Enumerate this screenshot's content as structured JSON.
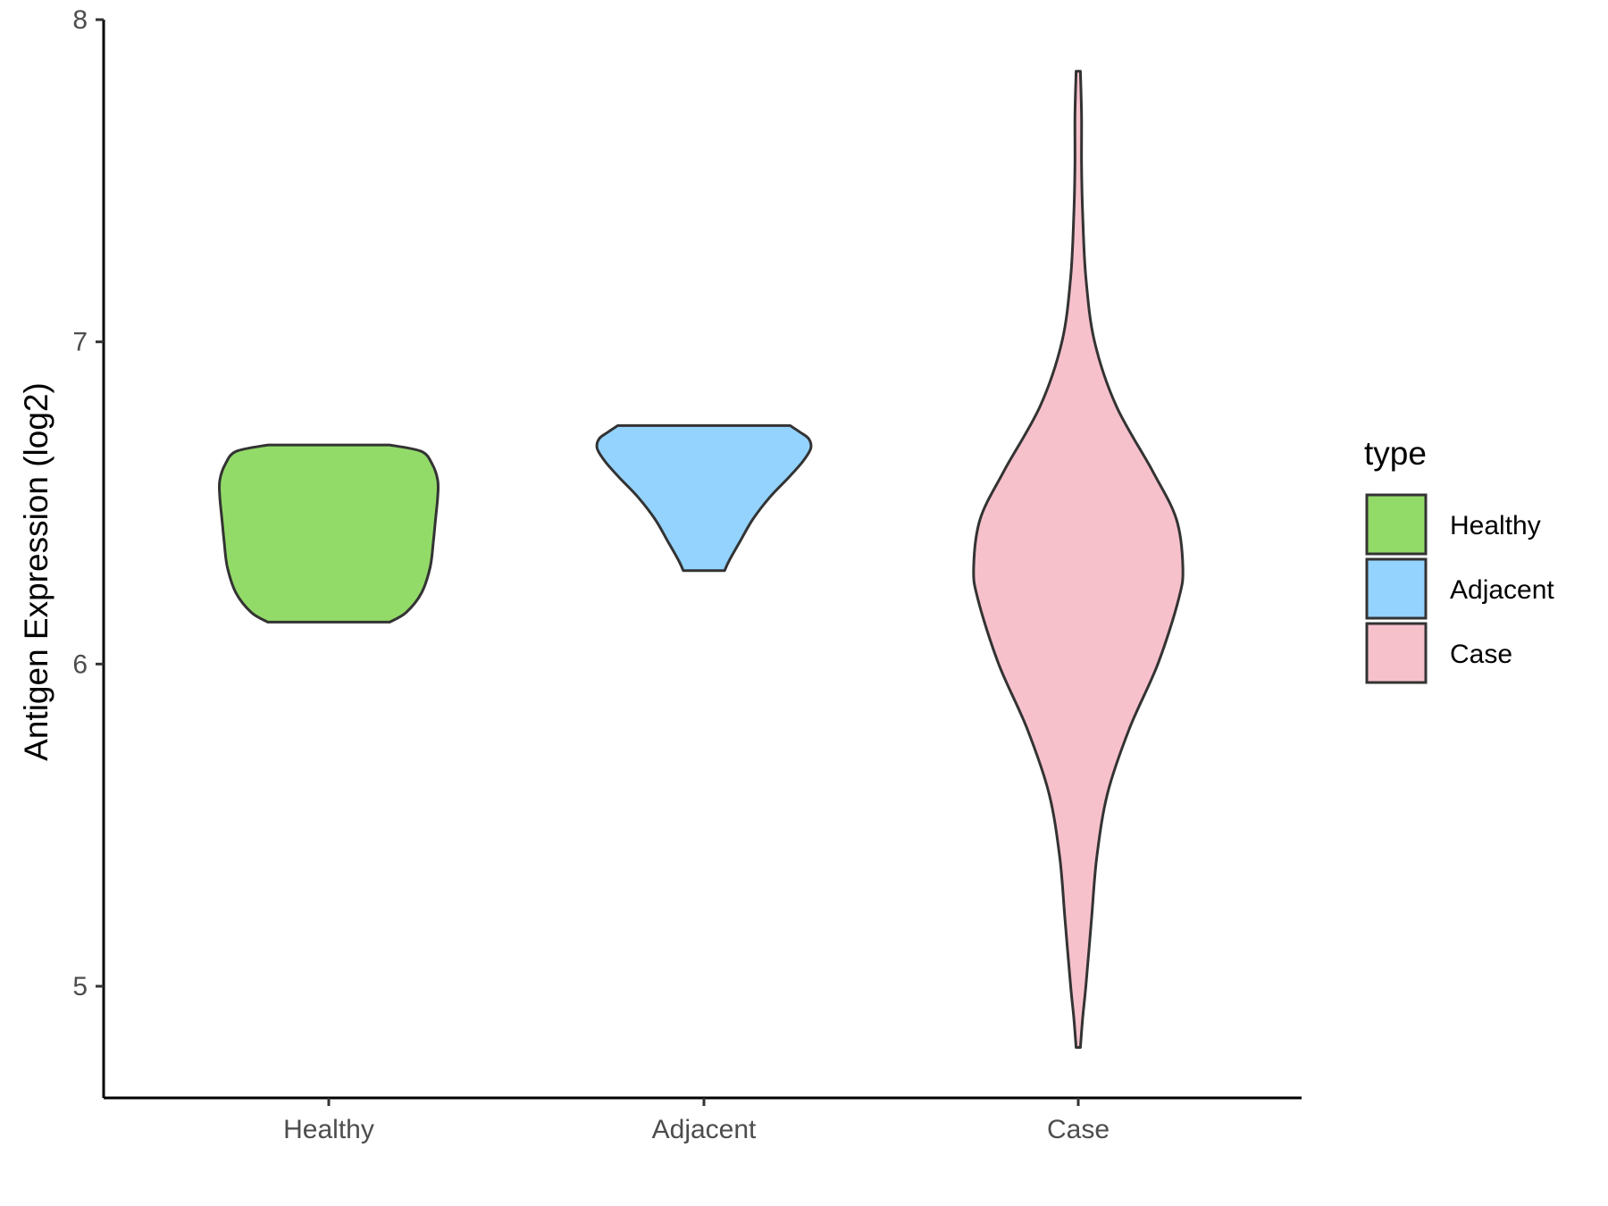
{
  "chart_data": {
    "type": "violin",
    "title": "",
    "xlabel": "",
    "ylabel": "Antigen Expression (log2)",
    "ylim": [
      4.65,
      8.0
    ],
    "yticks": [
      "5",
      "6",
      "7",
      "8"
    ],
    "categories": [
      "Healthy",
      "Adjacent",
      "Case"
    ],
    "grid": false,
    "legend": {
      "title": "type",
      "position": "right",
      "entries": [
        "Healthy",
        "Adjacent",
        "Case"
      ]
    },
    "series": [
      {
        "name": "Healthy",
        "color": "#93DB69",
        "min": 6.13,
        "max": 6.68,
        "density": [
          [
            6.13,
            0.56
          ],
          [
            6.16,
            0.71
          ],
          [
            6.22,
            0.85
          ],
          [
            6.3,
            0.93
          ],
          [
            6.38,
            0.96
          ],
          [
            6.45,
            0.98
          ],
          [
            6.52,
            1.0
          ],
          [
            6.57,
            1.0
          ],
          [
            6.62,
            0.95
          ],
          [
            6.66,
            0.85
          ],
          [
            6.68,
            0.56
          ]
        ]
      },
      {
        "name": "Adjacent",
        "color": "#93D3FE",
        "min": 6.29,
        "max": 6.74,
        "density": [
          [
            6.29,
            0.19
          ],
          [
            6.32,
            0.23
          ],
          [
            6.38,
            0.33
          ],
          [
            6.45,
            0.45
          ],
          [
            6.52,
            0.61
          ],
          [
            6.58,
            0.78
          ],
          [
            6.63,
            0.91
          ],
          [
            6.67,
            0.98
          ],
          [
            6.7,
            0.96
          ],
          [
            6.72,
            0.88
          ],
          [
            6.74,
            0.79
          ]
        ]
      },
      {
        "name": "Case",
        "color": "#F7C1CC",
        "min": 4.81,
        "max": 7.84,
        "density": [
          [
            4.81,
            0.02
          ],
          [
            4.9,
            0.04
          ],
          [
            5.0,
            0.07
          ],
          [
            5.2,
            0.12
          ],
          [
            5.4,
            0.17
          ],
          [
            5.6,
            0.27
          ],
          [
            5.8,
            0.47
          ],
          [
            6.0,
            0.73
          ],
          [
            6.2,
            0.92
          ],
          [
            6.3,
            0.96
          ],
          [
            6.45,
            0.9
          ],
          [
            6.6,
            0.68
          ],
          [
            6.8,
            0.35
          ],
          [
            7.0,
            0.15
          ],
          [
            7.2,
            0.07
          ],
          [
            7.4,
            0.04
          ],
          [
            7.55,
            0.03
          ],
          [
            7.7,
            0.03
          ],
          [
            7.84,
            0.02
          ]
        ]
      }
    ]
  }
}
